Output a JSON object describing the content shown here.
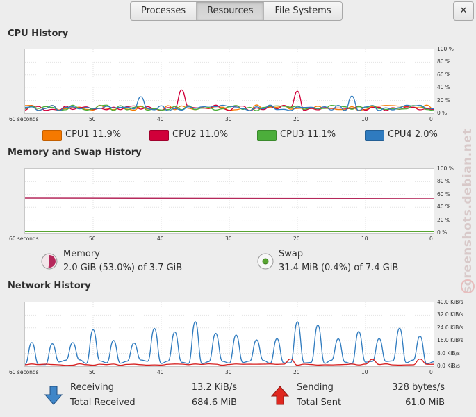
{
  "tabs": [
    {
      "label": "Processes"
    },
    {
      "label": "Resources"
    },
    {
      "label": "File Systems"
    }
  ],
  "close_glyph": "✕",
  "cpu": {
    "title": "CPU History",
    "y_ticks": [
      "100 %",
      "80 %",
      "60 %",
      "40 %",
      "20 %",
      "0 %"
    ],
    "x_ticks": [
      "60 seconds",
      "50",
      "40",
      "30",
      "20",
      "10",
      "0"
    ],
    "legend": [
      {
        "label": "CPU1 11.9%",
        "color": "#f57900"
      },
      {
        "label": "CPU2 11.0%",
        "color": "#d1003a"
      },
      {
        "label": "CPU3 11.1%",
        "color": "#4cae3b"
      },
      {
        "label": "CPU4 2.0%",
        "color": "#2f7bbf"
      }
    ]
  },
  "memory": {
    "title": "Memory and Swap History",
    "y_ticks": [
      "100 %",
      "80 %",
      "60 %",
      "40 %",
      "20 %",
      "0 %"
    ],
    "x_ticks": [
      "60 seconds",
      "50",
      "40",
      "30",
      "20",
      "10",
      "0"
    ],
    "memory_label": "Memory",
    "memory_value": "2.0 GiB (53.0%) of 3.7 GiB",
    "memory_color": "#b5285b",
    "swap_label": "Swap",
    "swap_value": "31.4 MiB (0.4%) of 7.4 GiB",
    "swap_color": "#58a431"
  },
  "network": {
    "title": "Network History",
    "y_ticks": [
      "40.0 KiB/s",
      "32.0 KiB/s",
      "24.0 KiB/s",
      "16.0 KiB/s",
      "8.0 KiB/s",
      "0.0 KiB/s"
    ],
    "x_ticks": [
      "60 seconds",
      "50",
      "40",
      "30",
      "20",
      "10",
      "0"
    ],
    "receiving_label": "Receiving",
    "receiving_value": "13.2 KiB/s",
    "total_received_label": "Total Received",
    "total_received_value": "684.6 MiB",
    "sending_label": "Sending",
    "sending_value": "328 bytes/s",
    "total_sent_label": "Total Sent",
    "total_sent_value": "61.0 MiB",
    "receiving_color": "#2f7bbf",
    "sending_color": "#d51f1f"
  },
  "watermark": "screenshots.debian.net"
}
